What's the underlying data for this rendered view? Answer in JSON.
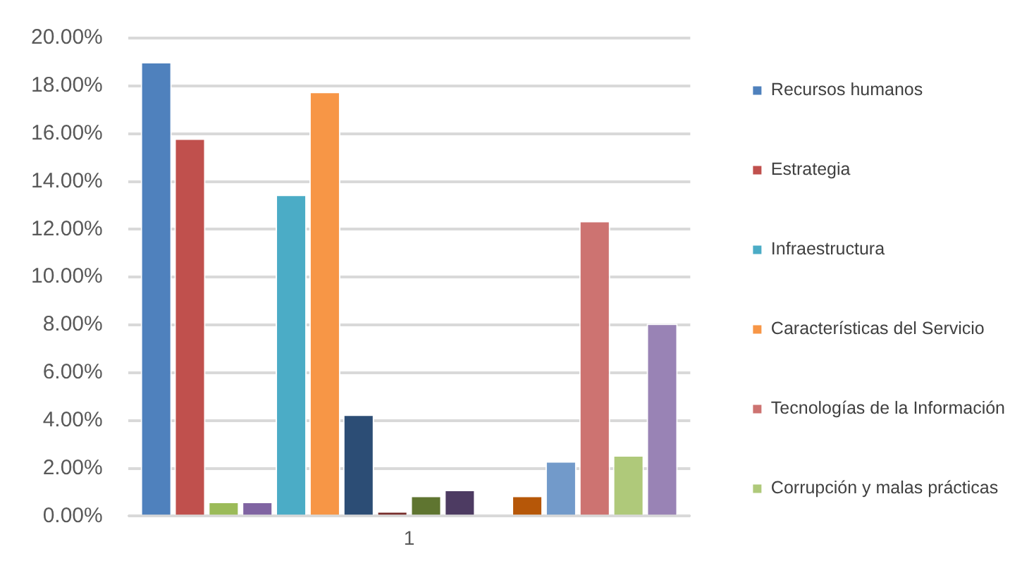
{
  "chart_data": {
    "type": "bar",
    "categories": [
      "1"
    ],
    "series": [
      {
        "name": "Recursos humanos",
        "color": "#4f81bd",
        "values": [
          19.0
        ]
      },
      {
        "name": "Estrategia",
        "color": "#c0504d",
        "values": [
          15.8
        ]
      },
      {
        "color": "#9bbb59",
        "values": [
          0.6
        ]
      },
      {
        "color": "#8064a2",
        "values": [
          0.6
        ]
      },
      {
        "name": "Infraestructura",
        "color": "#4bacc6",
        "values": [
          13.45
        ]
      },
      {
        "name": "Características del Servicio",
        "color": "#f79646",
        "values": [
          17.75
        ]
      },
      {
        "color": "#2c4d75",
        "values": [
          4.25
        ]
      },
      {
        "color": "#772c2a",
        "values": [
          0.2
        ]
      },
      {
        "color": "#5f7530",
        "values": [
          0.85
        ]
      },
      {
        "color": "#4d3b62",
        "values": [
          1.1
        ]
      },
      {
        "color": "#276a7c",
        "values": [
          null
        ]
      },
      {
        "color": "#b65708",
        "values": [
          0.85
        ]
      },
      {
        "color": "#729aca",
        "values": [
          2.3
        ]
      },
      {
        "name": "Tecnologías de la Información",
        "color": "#cd7371",
        "values": [
          12.35
        ]
      },
      {
        "name": "Corrupción y malas prácticas",
        "color": "#afc97a",
        "values": [
          2.55
        ]
      },
      {
        "color": "#9983b5",
        "values": [
          8.05
        ]
      }
    ],
    "ylim": [
      0,
      20
    ],
    "yticks": [
      {
        "value": 0,
        "label": "0.00%"
      },
      {
        "value": 2,
        "label": "2.00%"
      },
      {
        "value": 4,
        "label": "4.00%"
      },
      {
        "value": 6,
        "label": "6.00%"
      },
      {
        "value": 8,
        "label": "8.00%"
      },
      {
        "value": 10,
        "label": "10.00%"
      },
      {
        "value": 12,
        "label": "12.00%"
      },
      {
        "value": 14,
        "label": "14.00%"
      },
      {
        "value": 16,
        "label": "16.00%"
      },
      {
        "value": 18,
        "label": "18.00%"
      },
      {
        "value": 20,
        "label": "20.00%"
      }
    ],
    "grid": "y",
    "legend": "right"
  }
}
